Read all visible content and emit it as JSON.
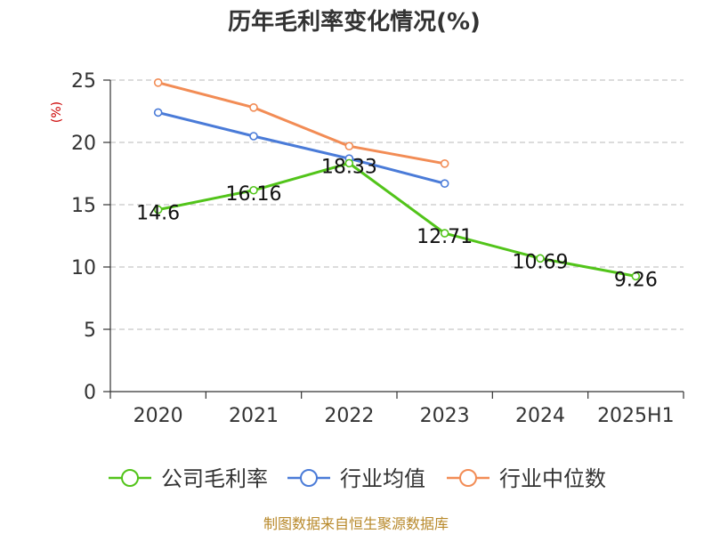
{
  "chart_data": {
    "type": "line",
    "title": "历年毛利率变化情况(%)",
    "ylabel": "(%)",
    "xlabel": "",
    "categories": [
      "2020",
      "2021",
      "2022",
      "2023",
      "2024",
      "2025H1"
    ],
    "ylim": [
      0,
      25
    ],
    "yticks": [
      0,
      5,
      10,
      15,
      20,
      25
    ],
    "grid": true,
    "legend_position": "bottom",
    "series": [
      {
        "name": "公司毛利率",
        "color": "#52c41a",
        "values": [
          14.6,
          16.16,
          18.33,
          12.71,
          10.69,
          9.26
        ],
        "show_labels": true,
        "labels": [
          "14.6",
          "16.16",
          "18.33",
          "12.71",
          "10.69",
          "9.26"
        ]
      },
      {
        "name": "行业均值",
        "color": "#4a7bd8",
        "values": [
          22.4,
          20.5,
          18.7,
          16.7,
          null,
          null
        ],
        "show_labels": false
      },
      {
        "name": "行业中位数",
        "color": "#f28c55",
        "values": [
          24.8,
          22.8,
          19.7,
          18.3,
          null,
          null
        ],
        "show_labels": false
      }
    ]
  },
  "footer": "制图数据来自恒生聚源数据库"
}
